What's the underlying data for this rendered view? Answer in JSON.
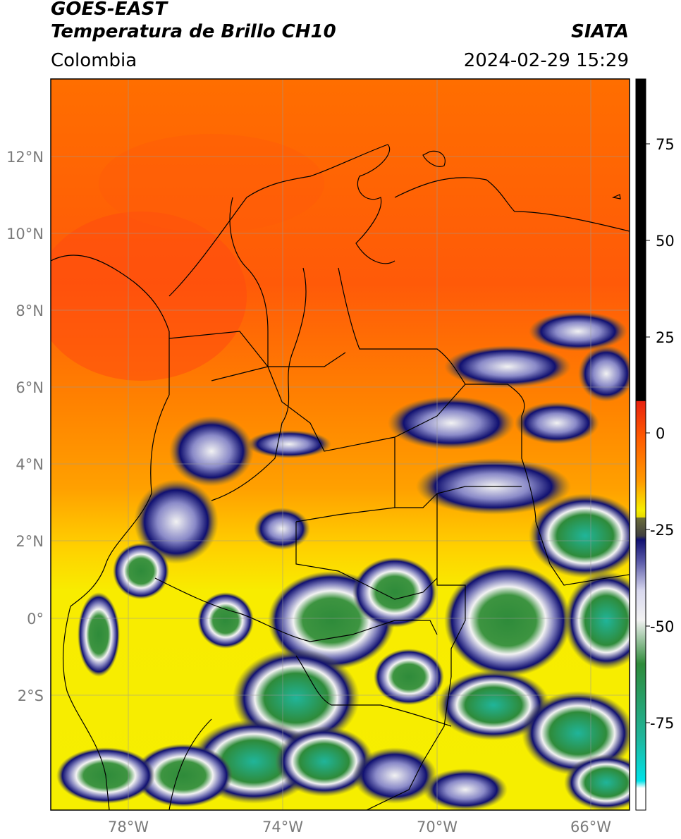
{
  "header": {
    "title_line1": "GOES-EAST",
    "title_line2": "Temperatura de Brillo CH10",
    "agency": "SIATA",
    "region": "Colombia",
    "timestamp": "2024-02-29 15:29"
  },
  "map": {
    "lat_labels": [
      "12°N",
      "10°N",
      "8°N",
      "6°N",
      "4°N",
      "2°N",
      "0°",
      "2°S"
    ],
    "lon_labels": [
      "78°W",
      "74°W",
      "70°W",
      "66°W"
    ],
    "extent": {
      "lon_min": -80,
      "lon_max": -65,
      "lat_min": -5,
      "lat_max": 14
    }
  },
  "colorbar": {
    "tick_labels": [
      "75",
      "50",
      "25",
      "0",
      "-25",
      "-50",
      "-75"
    ],
    "range": [
      -100,
      90
    ],
    "colors": {
      "black": "#000000",
      "red": "#e8210f",
      "orange": "#ff8a00",
      "yellow": "#f6ee00",
      "olive": "#6b6d3a",
      "navy": "#101070",
      "white": "#f2f2f2",
      "green": "#2e8b3a",
      "teal": "#20b59a",
      "cyan": "#00e2e8"
    }
  }
}
